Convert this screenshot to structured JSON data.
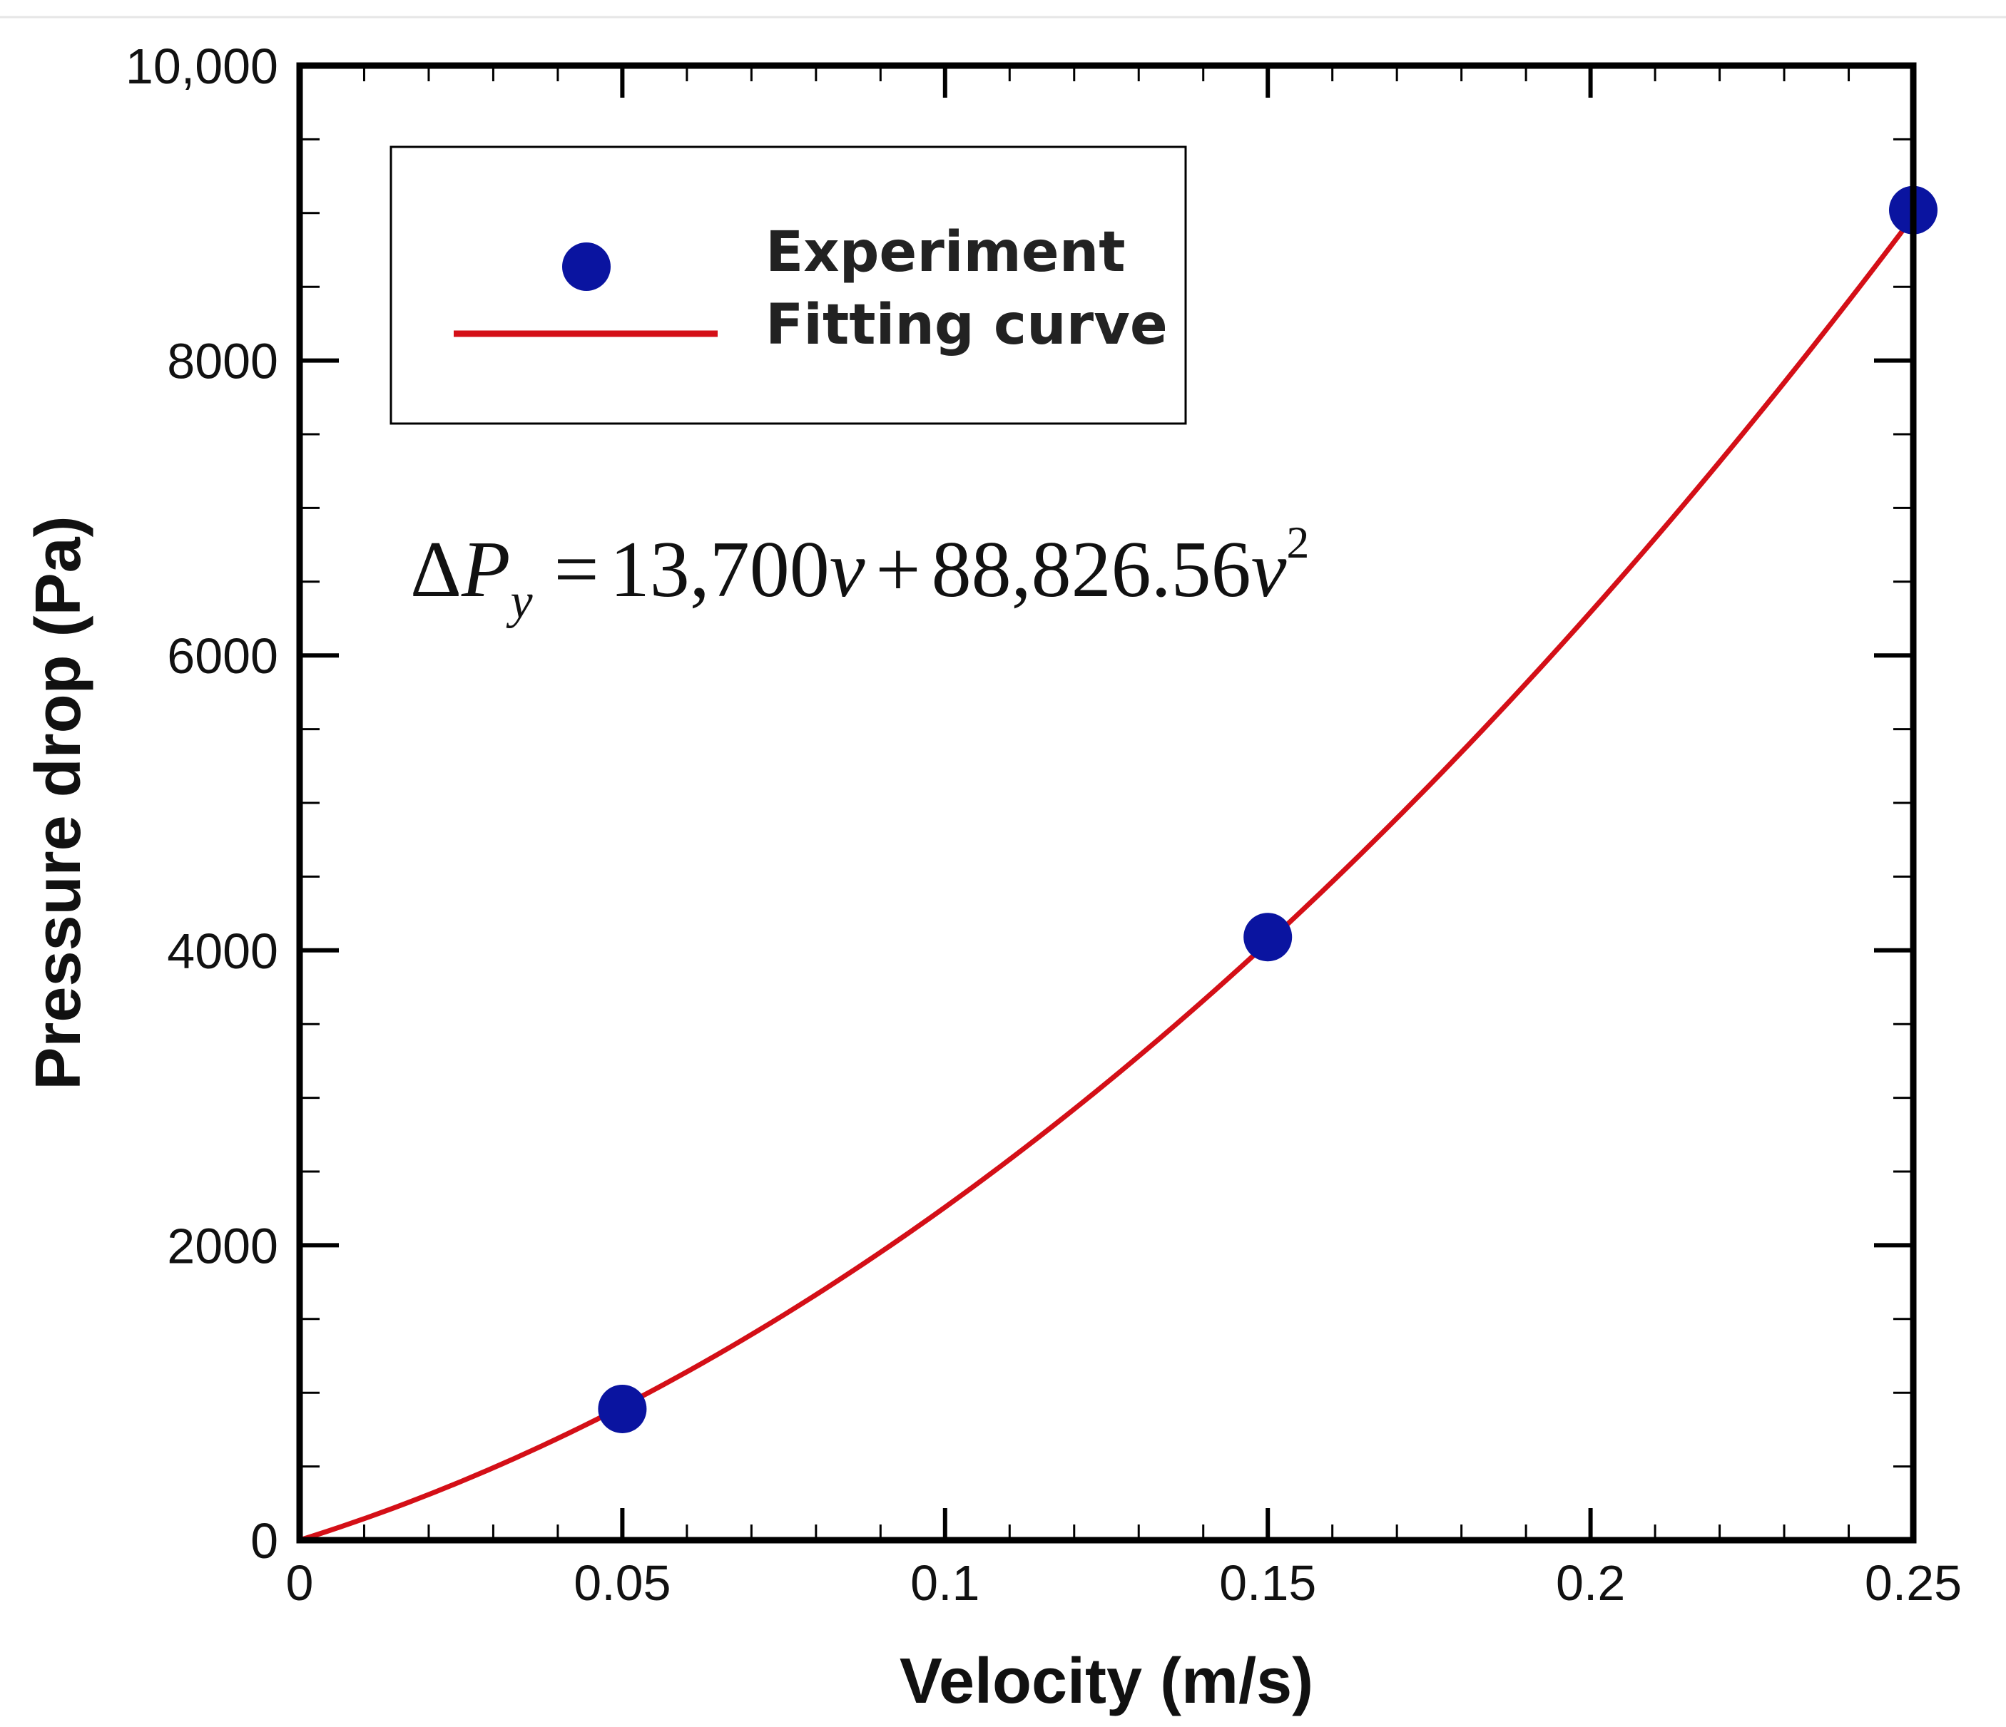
{
  "chart_data": {
    "type": "scatter",
    "title": "",
    "xlabel": "Velocity (m/s)",
    "ylabel": "Pressure drop (Pa)",
    "xlim": [
      0,
      0.25
    ],
    "ylim": [
      0,
      10000
    ],
    "x_ticks": [
      0,
      0.05,
      0.1,
      0.15,
      0.2,
      0.25
    ],
    "x_tick_labels": [
      "0",
      "0.05",
      "0.1",
      "0.15",
      "0.2",
      "0.25"
    ],
    "y_ticks": [
      0,
      2000,
      4000,
      6000,
      8000,
      10000
    ],
    "y_tick_labels": [
      "0",
      "2000",
      "4000",
      "6000",
      "8000",
      "10,000"
    ],
    "x_minor_step": 0.01,
    "y_minor_step": 500,
    "grid": false,
    "legend_position": "top-left",
    "series": [
      {
        "name": "Experiment",
        "kind": "scatter",
        "color": "#0a14a0",
        "x": [
          0.05,
          0.15,
          0.25
        ],
        "y": [
          890,
          4090,
          9020
        ]
      },
      {
        "name": "Fitting curve",
        "kind": "line",
        "color": "#d40f17",
        "coefficients": {
          "linear": 13700,
          "quadratic": 88826.56
        },
        "x_range": [
          0,
          0.25
        ]
      }
    ],
    "annotation": {
      "delta": "Δ",
      "symbol": "P",
      "subscript": "y",
      "equals": "=",
      "linear_coef": "13,700",
      "var": "v",
      "plus": "+",
      "quadratic_coef": "88,826.56",
      "var2": "v",
      "exponent": "2"
    }
  }
}
